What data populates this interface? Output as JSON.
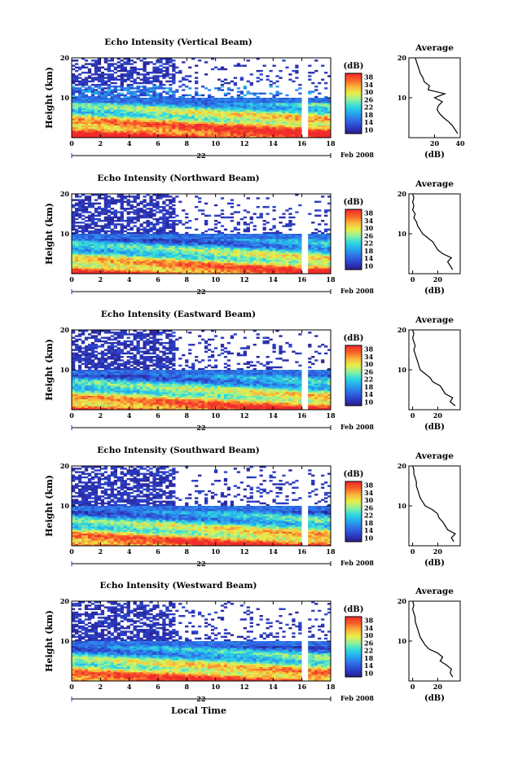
{
  "colors": {
    "scale": [
      "#2a1d8a",
      "#2b3fc8",
      "#2f6fe6",
      "#27a4ee",
      "#2ed8e0",
      "#8af0a0",
      "#e8f04a",
      "#fbb43a",
      "#f8602a",
      "#f02a2a"
    ],
    "background": "#ffffff",
    "line": "#000000"
  },
  "shared": {
    "ylabel": "Height (km)",
    "y_ticks": [
      "10",
      "20"
    ],
    "x_ticks": [
      "0",
      "2",
      "4",
      "6",
      "8",
      "10",
      "12",
      "14",
      "16",
      "18"
    ],
    "date_day": "22",
    "date_month_year": "Feb 2008",
    "xlabel": "Local Time",
    "colorbar_unit": "(dB)",
    "colorbar_ticks": [
      "10",
      "14",
      "18",
      "22",
      "26",
      "30",
      "34",
      "38"
    ],
    "profile_title": "Average",
    "profile_xlabel": "(dB)"
  },
  "chart_data": [
    {
      "type": "heatmap",
      "title": "Echo Intensity (Vertical Beam)",
      "x_range": [
        0,
        18
      ],
      "y_range": [
        0,
        20
      ],
      "color_range": [
        10,
        38
      ],
      "profile": {
        "x_ticks": [
          "20",
          "40"
        ],
        "xlim": [
          0,
          40
        ],
        "heights": [
          1,
          2,
          3,
          4,
          5,
          6,
          7,
          8,
          9,
          10,
          11,
          12,
          13,
          14,
          15,
          16,
          17,
          18,
          19,
          20
        ],
        "values": [
          38,
          36,
          34,
          31,
          27,
          24,
          22,
          23,
          26,
          20,
          28,
          15,
          16,
          12,
          11,
          9,
          8,
          7,
          6,
          5
        ]
      }
    },
    {
      "type": "heatmap",
      "title": "Echo Intensity (Northward Beam)",
      "x_range": [
        0,
        18
      ],
      "y_range": [
        0,
        20
      ],
      "color_range": [
        10,
        38
      ],
      "profile": {
        "x_ticks": [
          "0",
          "20"
        ],
        "xlim": [
          -3,
          38
        ],
        "heights": [
          1,
          2,
          3,
          4,
          5,
          6,
          7,
          8,
          9,
          10,
          11,
          12,
          13,
          14,
          15,
          16,
          17,
          18,
          19,
          20
        ],
        "values": [
          32,
          30,
          28,
          31,
          24,
          20,
          18,
          16,
          12,
          8,
          6,
          4,
          3,
          1,
          2,
          0,
          1,
          0,
          1,
          0
        ]
      }
    },
    {
      "type": "heatmap",
      "title": "Echo Intensity (Eastward Beam)",
      "x_range": [
        0,
        18
      ],
      "y_range": [
        0,
        20
      ],
      "color_range": [
        10,
        38
      ],
      "profile": {
        "x_ticks": [
          "0",
          "20"
        ],
        "xlim": [
          -3,
          38
        ],
        "heights": [
          1,
          2,
          3,
          4,
          5,
          6,
          7,
          8,
          9,
          10,
          11,
          12,
          13,
          14,
          15,
          16,
          17,
          18,
          19,
          20
        ],
        "values": [
          34,
          30,
          32,
          26,
          24,
          22,
          16,
          14,
          10,
          6,
          5,
          4,
          3,
          2,
          1,
          2,
          1,
          0,
          1,
          0
        ]
      }
    },
    {
      "type": "heatmap",
      "title": "Echo Intensity (Southward Beam)",
      "x_range": [
        0,
        18
      ],
      "y_range": [
        0,
        20
      ],
      "color_range": [
        10,
        38
      ],
      "profile": {
        "x_ticks": [
          "0",
          "20"
        ],
        "xlim": [
          -3,
          38
        ],
        "heights": [
          1,
          2,
          3,
          4,
          5,
          6,
          7,
          8,
          9,
          10,
          11,
          12,
          13,
          14,
          15,
          16,
          17,
          18,
          19,
          20
        ],
        "values": [
          33,
          31,
          34,
          28,
          26,
          24,
          21,
          20,
          16,
          10,
          8,
          6,
          5,
          4,
          3,
          3,
          2,
          1,
          1,
          0
        ]
      }
    },
    {
      "type": "heatmap",
      "title": "Echo Intensity (Westward Beam)",
      "x_range": [
        0,
        18
      ],
      "y_range": [
        0,
        20
      ],
      "color_range": [
        10,
        38
      ],
      "profile": {
        "x_ticks": [
          "0",
          "20"
        ],
        "xlim": [
          -3,
          38
        ],
        "heights": [
          1,
          2,
          3,
          4,
          5,
          6,
          7,
          8,
          9,
          10,
          11,
          12,
          13,
          14,
          15,
          16,
          17,
          18,
          19,
          20
        ],
        "values": [
          32,
          30,
          31,
          27,
          22,
          24,
          20,
          13,
          10,
          8,
          6,
          5,
          4,
          3,
          2,
          2,
          1,
          0,
          1,
          0
        ]
      }
    }
  ]
}
